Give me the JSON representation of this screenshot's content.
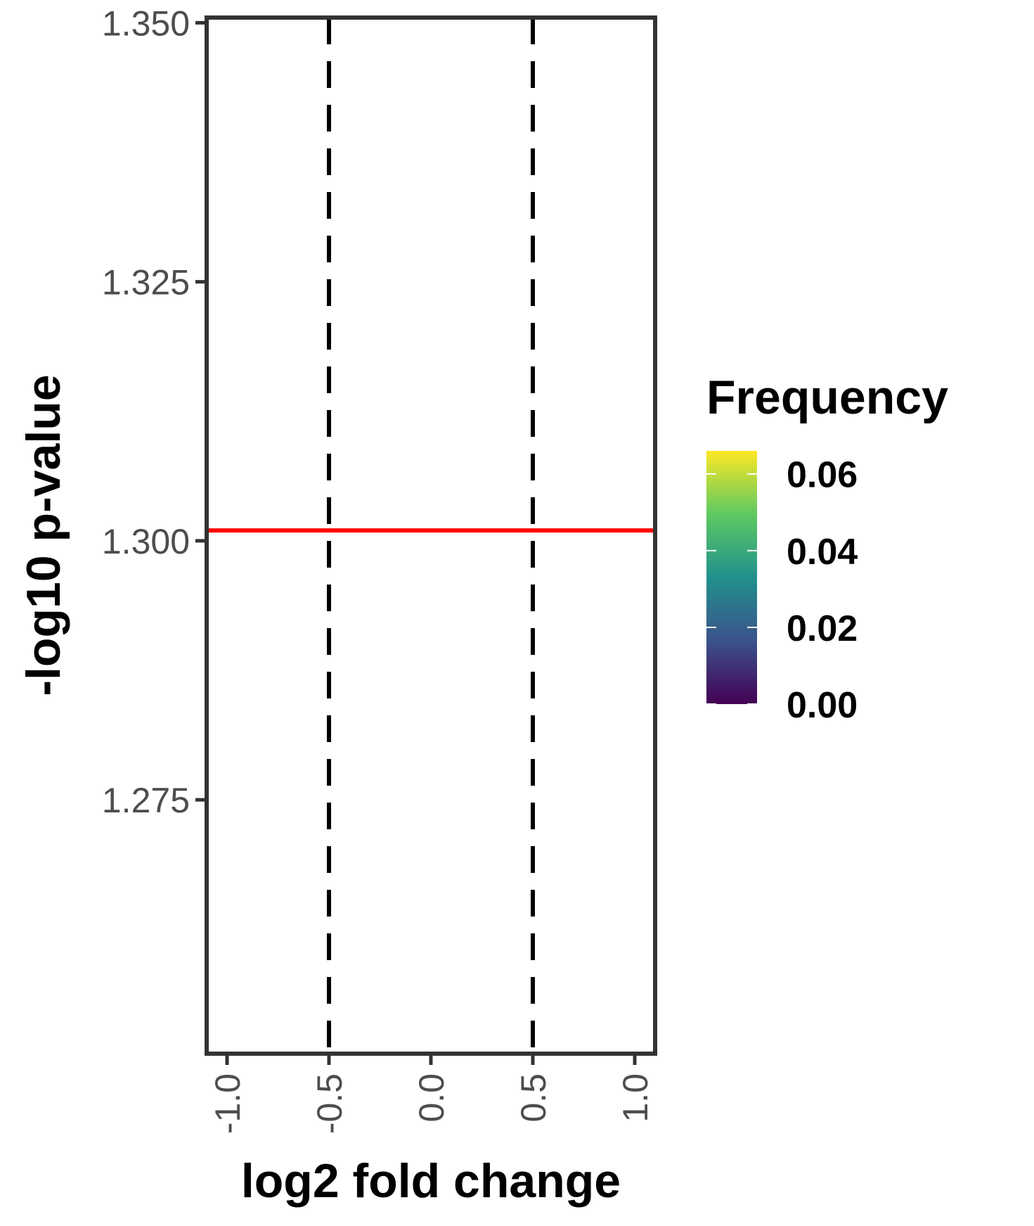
{
  "chart_data": {
    "type": "scatter",
    "title": "",
    "xlabel": "log2 fold change",
    "ylabel": "-log10 p-value",
    "xlim": [
      -1.1,
      1.1
    ],
    "ylim": [
      1.2505,
      1.3505
    ],
    "x_ticks": [
      "-1.0",
      "-0.5",
      "0.0",
      "0.5",
      "1.0"
    ],
    "x_tick_values": [
      -1.0,
      -0.5,
      0.0,
      0.5,
      1.0
    ],
    "y_ticks": [
      "1.275",
      "1.300",
      "1.325",
      "1.350"
    ],
    "y_tick_values": [
      1.275,
      1.3,
      1.325,
      1.35
    ],
    "points": [],
    "reference_lines": [
      {
        "orientation": "horizontal",
        "value": 1.301,
        "color": "#ff0000",
        "style": "solid"
      },
      {
        "orientation": "vertical",
        "value": -0.5,
        "color": "#000000",
        "style": "dashed"
      },
      {
        "orientation": "vertical",
        "value": 0.5,
        "color": "#000000",
        "style": "dashed"
      }
    ],
    "grid": false,
    "legend": {
      "title": "Frequency",
      "position": "right",
      "type": "colorbar",
      "colormap": [
        "#440154",
        "#3b528b",
        "#21918c",
        "#5ec962",
        "#fde725"
      ],
      "range": [
        0.0,
        0.066
      ],
      "labels": [
        "0.00",
        "0.02",
        "0.04",
        "0.06"
      ],
      "label_values": [
        0.0,
        0.02,
        0.04,
        0.06
      ]
    }
  }
}
